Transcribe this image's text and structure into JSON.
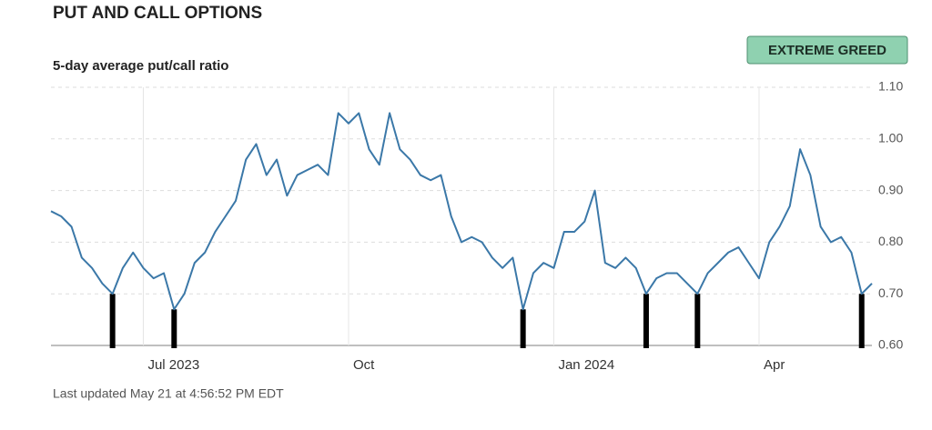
{
  "chart_data": {
    "type": "line",
    "title": "PUT AND CALL OPTIONS",
    "subtitle": "5-day average put/call ratio",
    "badge": "EXTREME GREED",
    "footer": "Last updated May 21 at 4:56:52 PM EDT",
    "categories": [
      null,
      null,
      null,
      null,
      null,
      null,
      null,
      null,
      null,
      "Jul 2023",
      null,
      null,
      null,
      null,
      null,
      null,
      null,
      null,
      null,
      null,
      null,
      null,
      null,
      null,
      null,
      null,
      null,
      null,
      null,
      "Oct",
      null,
      null,
      null,
      null,
      null,
      null,
      null,
      null,
      null,
      null,
      null,
      null,
      null,
      null,
      null,
      null,
      null,
      null,
      null,
      "Jan 2024",
      null,
      null,
      null,
      null,
      null,
      null,
      null,
      null,
      null,
      null,
      null,
      null,
      null,
      null,
      null,
      null,
      null,
      null,
      null,
      "Apr",
      null,
      null,
      null,
      null,
      null,
      null,
      null,
      null,
      null,
      null,
      null
    ],
    "series": [
      {
        "name": "5-day average put/call ratio",
        "color": "#3b78a8",
        "values": [
          0.86,
          0.85,
          0.83,
          0.77,
          0.75,
          0.72,
          0.7,
          0.75,
          0.78,
          0.75,
          0.73,
          0.74,
          0.67,
          0.7,
          0.76,
          0.78,
          0.82,
          0.85,
          0.88,
          0.96,
          0.99,
          0.93,
          0.96,
          0.89,
          0.93,
          0.94,
          0.95,
          0.93,
          1.05,
          1.03,
          1.05,
          0.98,
          0.95,
          1.05,
          0.98,
          0.96,
          0.93,
          0.92,
          0.93,
          0.85,
          0.8,
          0.81,
          0.8,
          0.77,
          0.75,
          0.77,
          0.67,
          0.74,
          0.76,
          0.75,
          0.82,
          0.82,
          0.84,
          0.9,
          0.76,
          0.75,
          0.77,
          0.75,
          0.7,
          0.73,
          0.74,
          0.74,
          0.72,
          0.7,
          0.74,
          0.76,
          0.78,
          0.79,
          0.76,
          0.73,
          0.8,
          0.83,
          0.87,
          0.98,
          0.93,
          0.83,
          0.8,
          0.81,
          0.78,
          0.7,
          0.72
        ]
      }
    ],
    "ylim": [
      0.6,
      1.1
    ],
    "yticks": [
      {
        "value": 0.6,
        "label": "0.60"
      },
      {
        "value": 0.7,
        "label": "0.70"
      },
      {
        "value": 0.8,
        "label": "0.80"
      },
      {
        "value": 0.9,
        "label": "0.90"
      },
      {
        "value": 1.0,
        "label": "1.00"
      },
      {
        "value": 1.1,
        "label": "1.10"
      }
    ],
    "grid": true
  }
}
